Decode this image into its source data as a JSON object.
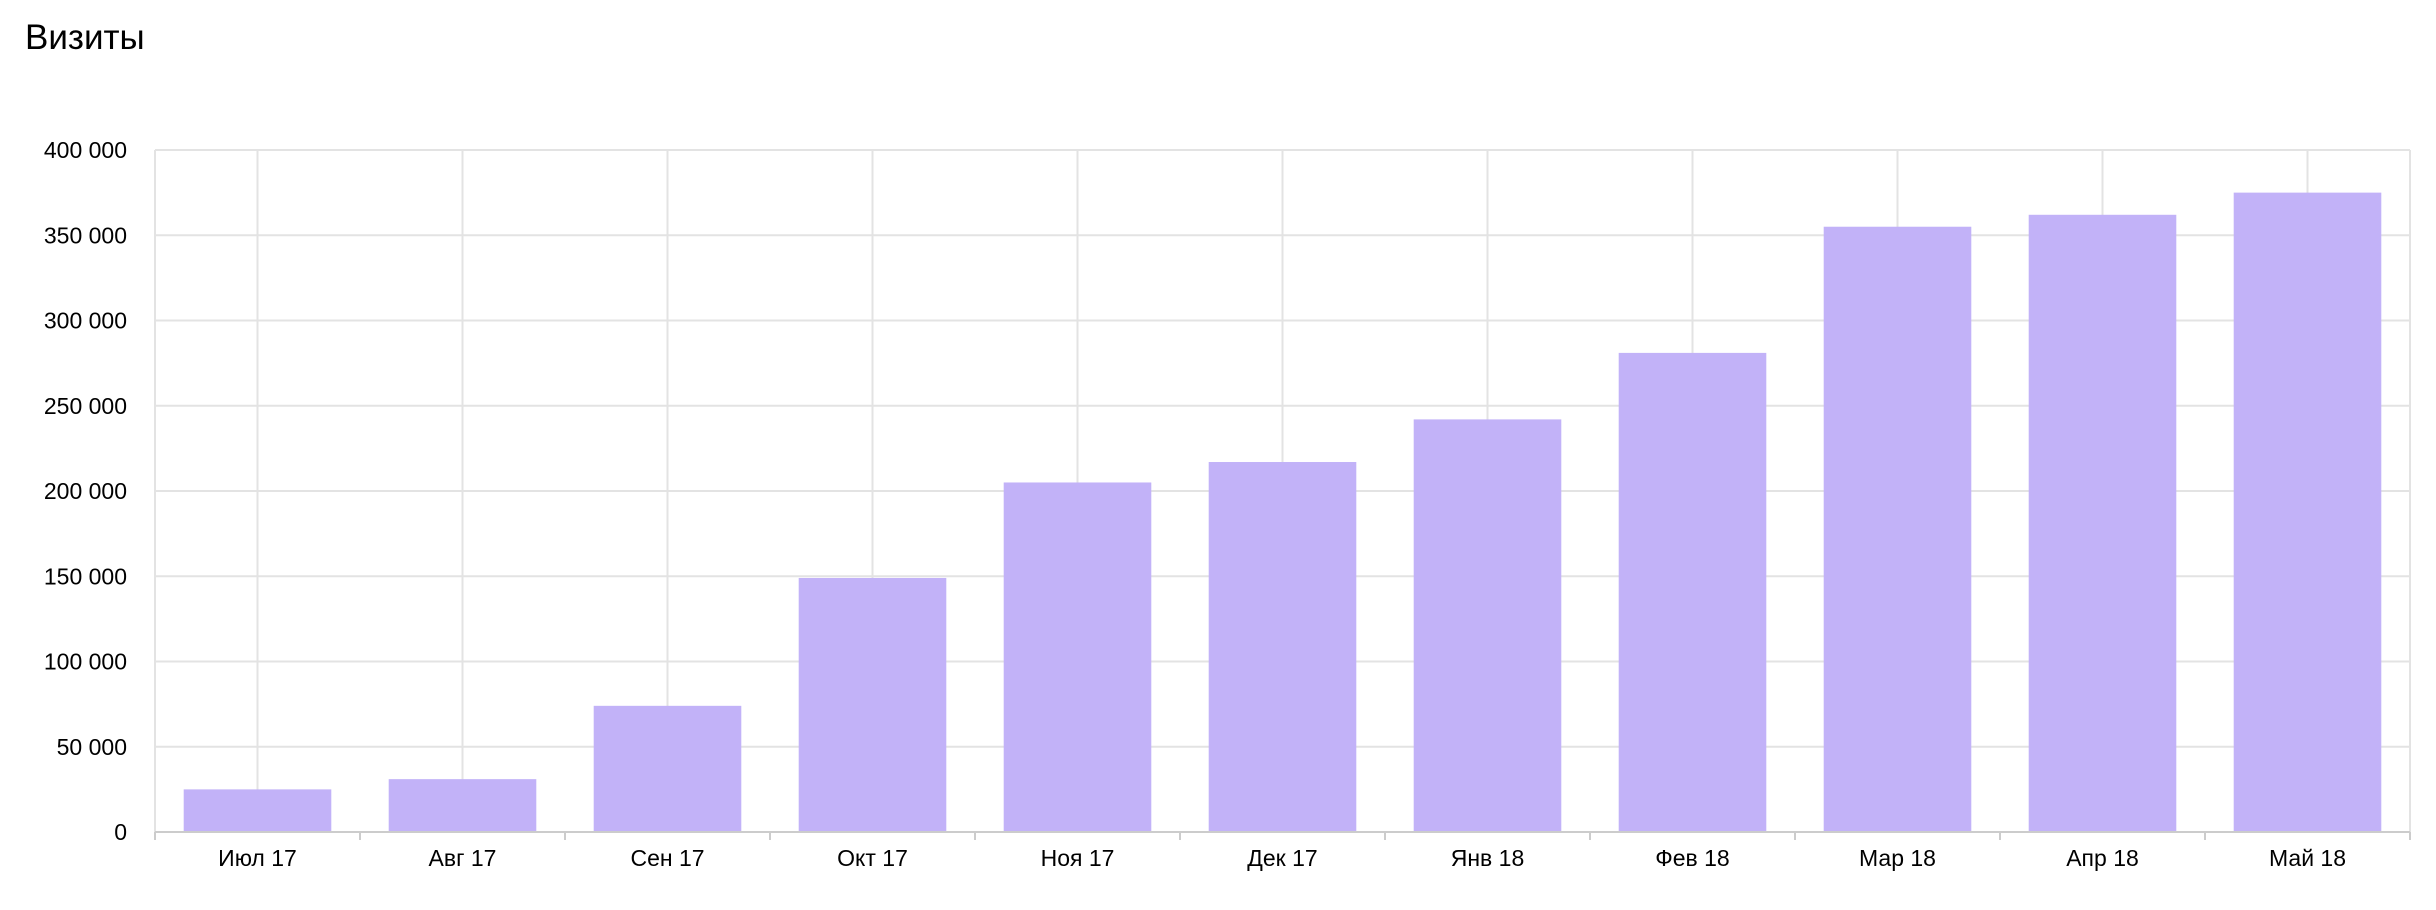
{
  "chart_data": {
    "type": "bar",
    "title": "Визиты",
    "xlabel": "",
    "ylabel": "",
    "categories": [
      "Июл 17",
      "Авг 17",
      "Сен 17",
      "Окт 17",
      "Ноя 17",
      "Дек 17",
      "Янв 18",
      "Фев 18",
      "Мар 18",
      "Апр 18",
      "Май 18"
    ],
    "values": [
      25000,
      31000,
      74000,
      149000,
      205000,
      217000,
      242000,
      281000,
      355000,
      362000,
      375000
    ],
    "ylim": [
      0,
      400000
    ],
    "yticks": [
      0,
      50000,
      100000,
      150000,
      200000,
      250000,
      300000,
      350000,
      400000
    ],
    "ytick_labels": [
      "0",
      "50 000",
      "100 000",
      "150 000",
      "200 000",
      "250 000",
      "300 000",
      "350 000",
      "400 000"
    ],
    "grid": true,
    "legend": "none",
    "colors": {
      "bar": "#c2b2f8",
      "grid": "#e3e3e3",
      "axis": "#cccccc",
      "text": "#000000"
    }
  }
}
